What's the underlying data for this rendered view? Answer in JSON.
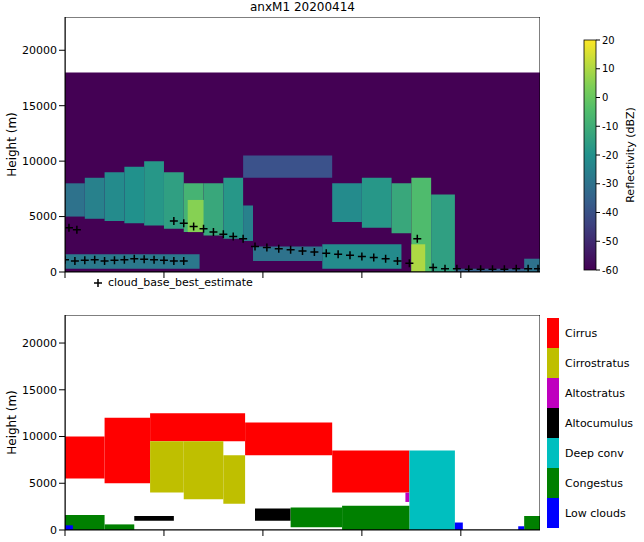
{
  "chart_data": [
    {
      "type": "heatmap",
      "title": "anxM1 20200414",
      "y_label": "Height (m)",
      "xlim": [
        0,
        24
      ],
      "xticks": [
        0,
        5,
        10,
        15,
        20
      ],
      "ylim": [
        0,
        23000
      ],
      "yticks": [
        0,
        5000,
        10000,
        15000,
        20000
      ],
      "tick_labels": "y",
      "legend": "bottom",
      "cells": [
        [
          0,
          24,
          0,
          18000,
          -60
        ],
        [
          0,
          1,
          5000,
          8000,
          -30
        ],
        [
          1,
          2,
          4800,
          8500,
          -25
        ],
        [
          2,
          3,
          4600,
          9000,
          -22
        ],
        [
          3,
          4,
          4400,
          9500,
          -20
        ],
        [
          4,
          5,
          4200,
          10000,
          -18
        ],
        [
          5,
          6,
          3900,
          9000,
          -15
        ],
        [
          6,
          7,
          3600,
          8000,
          -8
        ],
        [
          6.2,
          7.2,
          3600,
          6500,
          5
        ],
        [
          7,
          8,
          3300,
          8000,
          -12
        ],
        [
          8,
          9,
          3000,
          8500,
          -18
        ],
        [
          9,
          9.5,
          2800,
          6000,
          -25
        ],
        [
          9,
          13.5,
          8500,
          10500,
          -40
        ],
        [
          0,
          6.8,
          300,
          1600,
          -28
        ],
        [
          9.5,
          13,
          1000,
          2300,
          -30
        ],
        [
          13,
          17,
          300,
          2500,
          -22
        ],
        [
          13.5,
          15,
          4500,
          8000,
          -22
        ],
        [
          15,
          16.5,
          4000,
          8500,
          -18
        ],
        [
          16.5,
          17.5,
          3500,
          8000,
          -12
        ],
        [
          17.5,
          18.5,
          0,
          8500,
          -5
        ],
        [
          18.5,
          19.7,
          0,
          7000,
          -15
        ],
        [
          17.5,
          18.2,
          0,
          2500,
          10
        ],
        [
          19.7,
          23.2,
          0,
          300,
          -35
        ],
        [
          23.2,
          24,
          0,
          1200,
          -30
        ]
      ],
      "colorbar": {
        "label": "Reflectivity (dBZ)",
        "range": [
          -60,
          20
        ],
        "ticks": [
          20,
          10,
          0,
          -10,
          -20,
          -30,
          -40,
          -50,
          -60
        ]
      },
      "series": [
        {
          "name": "cloud_base_best_estimate",
          "type": "scatter",
          "marker": "plus",
          "color": "#000000",
          "x": [
            0,
            0.5,
            1,
            1.5,
            2,
            2.5,
            3,
            3.5,
            4,
            4.5,
            5,
            5.5,
            6,
            0.2,
            0.6,
            5.5,
            6,
            6.5,
            7,
            7.5,
            8,
            8.5,
            9,
            9.6,
            10.2,
            10.8,
            11.4,
            12,
            12.6,
            13.2,
            13.8,
            14.4,
            15,
            15.6,
            16.2,
            16.8,
            17.4,
            17.8,
            18.6,
            19.2,
            19.8,
            20.4,
            21,
            21.6,
            22.2,
            22.8,
            23.4,
            23.9
          ],
          "values": [
            1100,
            1000,
            1050,
            1100,
            1000,
            1050,
            1100,
            1200,
            1150,
            1100,
            1050,
            1000,
            1000,
            4000,
            3800,
            4600,
            4400,
            4100,
            3900,
            3600,
            3400,
            3200,
            3000,
            2300,
            2200,
            2100,
            2000,
            1900,
            1800,
            1700,
            1600,
            1500,
            1400,
            1300,
            1200,
            1000,
            800,
            3000,
            400,
            300,
            300,
            250,
            250,
            250,
            250,
            300,
            300,
            300
          ]
        }
      ]
    },
    {
      "type": "classification",
      "y_label": "Height (m)",
      "xlim": [
        0,
        24
      ],
      "xticks": [
        0,
        5,
        10,
        15,
        20
      ],
      "ylim": [
        0,
        23000
      ],
      "yticks": [
        0,
        5000,
        10000,
        15000,
        20000
      ],
      "tick_labels": "y",
      "legend": "right",
      "series": [
        {
          "name": "Cirrus",
          "color": "#ff0000",
          "boxes": [
            [
              0,
              2,
              5500,
              10000
            ],
            [
              2,
              4.3,
              5000,
              12000
            ],
            [
              4.3,
              9.1,
              9500,
              12500
            ],
            [
              9.1,
              13.5,
              8000,
              11500
            ],
            [
              13.5,
              17.4,
              4000,
              8500
            ]
          ]
        },
        {
          "name": "Cirrostratus",
          "color": "#bfbf00",
          "boxes": [
            [
              4.3,
              6,
              4000,
              9500
            ],
            [
              6,
              8,
              3300,
              9500
            ],
            [
              8,
              9.1,
              2800,
              8000
            ]
          ]
        },
        {
          "name": "Altostratus",
          "color": "#bf00bf",
          "boxes": [
            [
              17.2,
              17.4,
              3000,
              4000
            ]
          ]
        },
        {
          "name": "Altocumulus",
          "color": "#000000",
          "boxes": [
            [
              3.5,
              5.5,
              1000,
              1500
            ],
            [
              9.6,
              11.4,
              1000,
              2300
            ]
          ]
        },
        {
          "name": "Deep conv",
          "color": "#00bfbf",
          "boxes": [
            [
              17.4,
              19.7,
              0,
              8500
            ]
          ]
        },
        {
          "name": "Congestus",
          "color": "#008000",
          "boxes": [
            [
              0,
              2,
              0,
              1600
            ],
            [
              2,
              3.5,
              0,
              600
            ],
            [
              11.4,
              14,
              300,
              2400
            ],
            [
              14,
              17.4,
              0,
              2600
            ],
            [
              23.2,
              24,
              0,
              1500
            ]
          ]
        },
        {
          "name": "Low clouds",
          "color": "#0000ff",
          "boxes": [
            [
              0,
              0.4,
              0,
              500
            ],
            [
              19.7,
              20.1,
              0,
              800
            ],
            [
              22.9,
              23.2,
              0,
              400
            ]
          ]
        }
      ]
    }
  ]
}
